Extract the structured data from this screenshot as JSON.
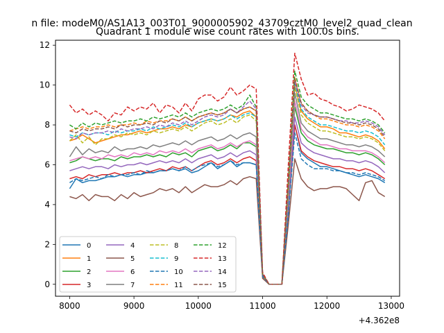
{
  "suptitle": "n file: modeM0/AS1A13_003T01_9000005902_43709cztM0_level2_quad_clean",
  "chart_data": {
    "type": "line",
    "title": "Quadrant 1 module wise count rates with 100.0s bins.",
    "xlabel": "",
    "ylabel": "",
    "offset_text": "+4.362e8",
    "xlim": [
      7780,
      13130
    ],
    "ylim": [
      -0.6,
      12.25
    ],
    "xticks": [
      8000,
      9000,
      10000,
      11000,
      12000,
      13000
    ],
    "yticks": [
      0,
      2,
      4,
      6,
      8,
      10,
      12
    ],
    "grid": false,
    "legend": {
      "placement": "lower-left",
      "ncol": 4
    },
    "x": [
      8000,
      8100,
      8200,
      8300,
      8400,
      8500,
      8600,
      8700,
      8800,
      8900,
      9000,
      9100,
      9200,
      9300,
      9400,
      9500,
      9600,
      9700,
      9800,
      9900,
      10000,
      10100,
      10200,
      10300,
      10400,
      10500,
      10600,
      10700,
      10800,
      10900,
      11000,
      11100,
      11200,
      11300,
      11400,
      11500,
      11600,
      11700,
      11800,
      11900,
      12000,
      12100,
      12200,
      12300,
      12400,
      12500,
      12600,
      12700,
      12800,
      12900
    ],
    "series": [
      {
        "name": "0",
        "color": "#1f77b4",
        "dash": "solid",
        "values": [
          4.8,
          5.3,
          5.1,
          5.2,
          5.2,
          5.3,
          5.4,
          5.4,
          5.5,
          5.4,
          5.5,
          5.5,
          5.6,
          5.6,
          5.7,
          5.7,
          5.8,
          5.7,
          5.8,
          5.6,
          5.7,
          5.9,
          6.1,
          5.8,
          6.0,
          6.2,
          5.9,
          6.1,
          6.1,
          6.0,
          0.4,
          0.0,
          0.0,
          0.0,
          3.6,
          8.0,
          6.6,
          6.3,
          6.1,
          5.9,
          5.9,
          5.8,
          5.7,
          5.6,
          5.5,
          5.4,
          5.5,
          5.4,
          5.3,
          5.1
        ]
      },
      {
        "name": "1",
        "color": "#ff7f0e",
        "dash": "solid",
        "values": [
          7.2,
          7.3,
          7.5,
          7.3,
          7.1,
          7.2,
          7.3,
          7.4,
          7.5,
          7.5,
          7.6,
          7.7,
          7.6,
          7.7,
          7.8,
          7.8,
          7.9,
          7.8,
          8.0,
          7.9,
          8.1,
          8.2,
          8.3,
          8.2,
          8.3,
          8.5,
          8.4,
          8.6,
          8.7,
          8.4,
          0.5,
          0.0,
          0.0,
          0.0,
          4.8,
          10.0,
          8.7,
          8.3,
          8.1,
          7.9,
          7.9,
          7.8,
          7.6,
          7.6,
          7.5,
          7.4,
          7.5,
          7.4,
          7.2,
          6.8
        ]
      },
      {
        "name": "2",
        "color": "#2ca02c",
        "dash": "solid",
        "values": [
          6.1,
          6.2,
          6.4,
          6.3,
          6.2,
          6.3,
          6.3,
          6.2,
          6.4,
          6.3,
          6.4,
          6.4,
          6.5,
          6.4,
          6.5,
          6.4,
          6.6,
          6.5,
          6.6,
          6.4,
          6.7,
          6.8,
          6.9,
          6.7,
          6.8,
          7.0,
          6.8,
          7.1,
          7.1,
          6.9,
          0.4,
          0.0,
          0.0,
          0.0,
          4.2,
          8.9,
          7.6,
          7.2,
          7.0,
          6.9,
          6.8,
          6.8,
          6.7,
          6.6,
          6.6,
          6.5,
          6.6,
          6.5,
          6.3,
          6.0
        ]
      },
      {
        "name": "3",
        "color": "#d62728",
        "dash": "solid",
        "values": [
          5.3,
          5.4,
          5.3,
          5.5,
          5.4,
          5.5,
          5.5,
          5.6,
          5.5,
          5.6,
          5.6,
          5.7,
          5.6,
          5.7,
          5.8,
          5.7,
          5.9,
          5.8,
          5.9,
          5.7,
          5.9,
          6.1,
          6.2,
          6.0,
          6.1,
          6.3,
          6.1,
          6.3,
          6.4,
          6.2,
          0.4,
          0.0,
          0.0,
          0.0,
          3.8,
          8.0,
          6.7,
          6.4,
          6.2,
          6.1,
          6.0,
          5.9,
          5.9,
          5.8,
          5.8,
          5.7,
          5.8,
          5.7,
          5.5,
          5.3
        ]
      },
      {
        "name": "4",
        "color": "#9467bd",
        "dash": "solid",
        "values": [
          5.7,
          5.8,
          5.9,
          5.8,
          5.9,
          5.9,
          5.8,
          6.0,
          5.9,
          6.0,
          6.0,
          6.1,
          6.0,
          6.1,
          6.2,
          6.1,
          6.2,
          6.1,
          6.3,
          6.1,
          6.3,
          6.4,
          6.5,
          6.3,
          6.4,
          6.6,
          6.4,
          6.6,
          6.7,
          6.5,
          0.4,
          0.0,
          0.0,
          0.0,
          4.0,
          8.4,
          7.1,
          6.8,
          6.6,
          6.5,
          6.4,
          6.3,
          6.3,
          6.2,
          6.2,
          6.1,
          6.2,
          6.1,
          5.9,
          5.6
        ]
      },
      {
        "name": "5",
        "color": "#8c564b",
        "dash": "solid",
        "values": [
          4.4,
          4.3,
          4.5,
          4.2,
          4.5,
          4.4,
          4.4,
          4.2,
          4.5,
          4.3,
          4.6,
          4.4,
          4.5,
          4.6,
          4.8,
          4.7,
          4.8,
          4.6,
          4.9,
          4.6,
          4.8,
          5.0,
          4.9,
          4.9,
          5.0,
          5.2,
          5.0,
          5.3,
          5.4,
          5.3,
          0.3,
          0.0,
          0.0,
          0.0,
          3.0,
          6.3,
          5.3,
          4.9,
          4.7,
          4.8,
          4.8,
          4.9,
          4.9,
          4.8,
          4.5,
          4.2,
          5.1,
          5.2,
          4.6,
          4.4
        ]
      },
      {
        "name": "6",
        "color": "#e377c2",
        "dash": "solid",
        "values": [
          6.2,
          6.3,
          6.4,
          6.3,
          6.4,
          6.3,
          6.5,
          6.4,
          6.5,
          6.4,
          6.6,
          6.5,
          6.6,
          6.5,
          6.7,
          6.6,
          6.7,
          6.6,
          6.8,
          6.6,
          6.8,
          6.9,
          7.0,
          6.8,
          6.9,
          7.1,
          6.9,
          7.1,
          7.2,
          7.0,
          0.4,
          0.0,
          0.0,
          0.0,
          4.3,
          9.2,
          7.8,
          7.4,
          7.2,
          7.0,
          7.0,
          6.9,
          6.8,
          6.8,
          6.7,
          6.7,
          6.7,
          6.6,
          6.4,
          6.1
        ]
      },
      {
        "name": "7",
        "color": "#7f7f7f",
        "dash": "solid",
        "values": [
          6.4,
          6.9,
          6.5,
          6.8,
          6.6,
          6.7,
          6.6,
          6.9,
          6.7,
          6.8,
          6.8,
          6.9,
          6.8,
          7.0,
          6.9,
          7.0,
          7.1,
          7.0,
          7.2,
          7.0,
          7.2,
          7.3,
          7.4,
          7.2,
          7.3,
          7.5,
          7.3,
          7.5,
          7.6,
          7.4,
          0.4,
          0.0,
          0.0,
          0.0,
          4.5,
          9.6,
          8.1,
          7.7,
          7.5,
          7.3,
          7.3,
          7.2,
          7.1,
          7.0,
          7.0,
          6.9,
          7.0,
          6.9,
          6.7,
          6.4
        ]
      },
      {
        "name": "8",
        "color": "#bcbd22",
        "dash": "dashed",
        "values": [
          7.2,
          7.5,
          7.1,
          7.4,
          7.0,
          7.3,
          7.3,
          7.5,
          7.4,
          7.6,
          7.5,
          7.6,
          7.5,
          7.7,
          7.6,
          7.7,
          7.8,
          7.7,
          7.9,
          7.7,
          7.9,
          8.1,
          8.2,
          8.0,
          8.1,
          8.3,
          8.1,
          8.4,
          8.5,
          8.2,
          0.5,
          0.0,
          0.0,
          0.0,
          4.7,
          9.9,
          8.5,
          8.1,
          7.9,
          7.7,
          7.7,
          7.6,
          7.5,
          7.4,
          7.4,
          7.3,
          7.4,
          7.3,
          7.1,
          6.7
        ]
      },
      {
        "name": "9",
        "color": "#17becf",
        "dash": "dashed",
        "values": [
          7.5,
          7.4,
          7.6,
          7.5,
          7.6,
          7.6,
          7.5,
          7.7,
          7.6,
          7.7,
          7.7,
          7.8,
          7.7,
          7.9,
          7.8,
          7.9,
          8.0,
          7.9,
          8.1,
          7.9,
          8.1,
          8.2,
          8.3,
          8.2,
          8.3,
          8.5,
          8.3,
          8.5,
          8.6,
          8.4,
          0.5,
          0.0,
          0.0,
          0.0,
          4.8,
          10.1,
          8.8,
          8.4,
          8.2,
          8.0,
          8.0,
          7.9,
          7.8,
          7.7,
          7.7,
          7.6,
          7.7,
          7.6,
          7.4,
          7.0
        ]
      },
      {
        "name": "10",
        "color": "#1f77b4",
        "dash": "dashed",
        "values": [
          5.1,
          5.3,
          5.2,
          5.3,
          5.4,
          5.3,
          5.5,
          5.4,
          5.5,
          5.5,
          5.6,
          5.5,
          5.7,
          5.6,
          5.7,
          5.7,
          5.8,
          5.7,
          5.9,
          5.7,
          5.9,
          6.0,
          6.1,
          5.9,
          6.0,
          6.2,
          6.0,
          6.1,
          6.1,
          6.0,
          0.4,
          0.0,
          0.0,
          0.0,
          3.5,
          7.6,
          6.3,
          6.0,
          5.8,
          5.8,
          5.8,
          5.7,
          5.7,
          5.6,
          5.6,
          5.5,
          5.6,
          5.5,
          5.4,
          5.2
        ]
      },
      {
        "name": "11",
        "color": "#ff7f0e",
        "dash": "dashed",
        "values": [
          7.7,
          7.8,
          7.9,
          7.8,
          7.9,
          7.9,
          8.0,
          7.9,
          8.0,
          8.0,
          8.1,
          8.0,
          8.2,
          8.1,
          8.2,
          8.2,
          8.3,
          8.2,
          8.4,
          8.2,
          8.4,
          8.5,
          8.6,
          8.5,
          8.6,
          8.8,
          8.6,
          8.8,
          8.9,
          8.7,
          0.5,
          0.0,
          0.0,
          0.0,
          5.0,
          10.4,
          9.1,
          8.7,
          8.5,
          8.3,
          8.3,
          8.2,
          8.1,
          8.0,
          8.0,
          7.9,
          8.0,
          7.9,
          7.7,
          7.3
        ]
      },
      {
        "name": "12",
        "color": "#2ca02c",
        "dash": "dashed",
        "values": [
          8.0,
          7.8,
          8.1,
          7.9,
          8.1,
          8.0,
          8.1,
          8.2,
          8.1,
          8.2,
          8.2,
          8.3,
          8.2,
          8.4,
          8.3,
          8.4,
          8.5,
          8.4,
          8.6,
          8.4,
          8.6,
          8.7,
          8.8,
          8.7,
          8.8,
          9.0,
          8.8,
          9.0,
          9.5,
          8.9,
          0.5,
          0.0,
          0.0,
          0.0,
          5.2,
          10.7,
          9.4,
          9.0,
          8.8,
          8.6,
          8.6,
          8.5,
          8.4,
          8.3,
          8.3,
          8.2,
          8.3,
          8.2,
          8.0,
          7.6
        ]
      },
      {
        "name": "13",
        "color": "#d62728",
        "dash": "dashed",
        "values": [
          9.0,
          8.6,
          8.8,
          8.5,
          8.7,
          8.5,
          8.2,
          8.6,
          8.5,
          8.9,
          8.7,
          8.9,
          8.8,
          9.1,
          8.6,
          9.0,
          8.9,
          8.6,
          9.1,
          8.7,
          9.3,
          9.5,
          9.5,
          9.2,
          9.4,
          9.9,
          9.5,
          9.7,
          10.0,
          9.8,
          0.6,
          0.0,
          0.0,
          0.0,
          6.0,
          11.6,
          10.3,
          9.5,
          9.6,
          9.3,
          9.2,
          9.0,
          8.9,
          8.7,
          8.8,
          9.0,
          8.9,
          8.8,
          8.6,
          8.2
        ]
      },
      {
        "name": "14",
        "color": "#9467bd",
        "dash": "dashed",
        "values": [
          7.4,
          7.3,
          7.6,
          7.5,
          7.6,
          7.6,
          7.7,
          7.6,
          7.8,
          7.7,
          7.8,
          7.8,
          7.9,
          7.8,
          8.0,
          7.9,
          8.1,
          8.0,
          8.2,
          8.0,
          8.2,
          8.4,
          8.5,
          8.4,
          8.5,
          8.8,
          8.6,
          8.9,
          9.2,
          8.8,
          0.5,
          0.0,
          0.0,
          0.0,
          5.0,
          10.2,
          9.0,
          8.6,
          8.5,
          8.4,
          8.4,
          8.3,
          8.2,
          8.2,
          8.1,
          8.1,
          8.2,
          8.1,
          7.9,
          7.5
        ]
      },
      {
        "name": "15",
        "color": "#8c564b",
        "dash": "dashed",
        "values": [
          7.7,
          7.6,
          7.8,
          7.7,
          7.8,
          7.8,
          7.9,
          7.8,
          8.0,
          7.9,
          8.0,
          8.0,
          8.1,
          8.0,
          8.2,
          8.1,
          8.3,
          8.2,
          8.4,
          8.2,
          8.4,
          8.5,
          8.6,
          8.5,
          8.6,
          8.8,
          8.6,
          8.8,
          8.9,
          8.7,
          0.5,
          0.0,
          0.0,
          0.0,
          5.1,
          10.3,
          9.1,
          8.7,
          8.5,
          8.4,
          8.4,
          8.3,
          8.2,
          8.1,
          8.1,
          8.0,
          8.1,
          8.0,
          7.8,
          7.4
        ]
      }
    ]
  }
}
